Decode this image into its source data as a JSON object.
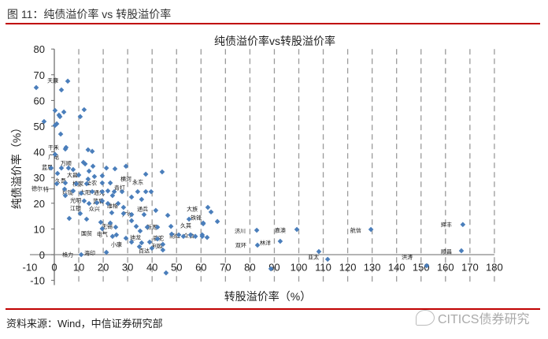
{
  "figure": {
    "title": "图 11：纯债溢价率 vs 转股溢价率",
    "source": "资料来源：Wind，中信证券研究部",
    "watermark": "CITICS债券研究"
  },
  "colors": {
    "marker": "#4a7ebb",
    "rule": "#c00000",
    "grid": "#9a9a9a"
  },
  "chart_data": {
    "type": "scatter",
    "title": "纯债溢价率vs转股溢价率",
    "xlabel": "转股溢价率（%）",
    "ylabel": "纯债溢价率（%）",
    "xlim": [
      -10,
      180
    ],
    "ylim": [
      -10,
      80
    ],
    "xticks": [
      -10,
      0,
      10,
      20,
      30,
      40,
      50,
      60,
      70,
      80,
      90,
      100,
      110,
      120,
      130,
      140,
      150,
      160,
      170,
      180
    ],
    "yticks": [
      80,
      70,
      60,
      50,
      40,
      30,
      20,
      10,
      0,
      -10
    ],
    "grid": "vertical-dashed",
    "points": [
      [
        -7.4,
        65
      ],
      [
        5.5,
        67.5
      ],
      [
        2.9,
        64.1
      ],
      [
        0.3,
        56.1
      ],
      [
        3.9,
        55.5
      ],
      [
        1.9,
        54.3
      ],
      [
        2.3,
        53.7
      ],
      [
        12.2,
        56.4
      ],
      [
        10.6,
        53.7
      ],
      [
        -4.2,
        51.8
      ],
      [
        1,
        50.9
      ],
      [
        0.3,
        50.3
      ],
      [
        2.6,
        46.9
      ],
      [
        4.8,
        41.7
      ],
      [
        4.5,
        41.1
      ],
      [
        13.8,
        40.8
      ],
      [
        15.5,
        40.2
      ],
      [
        0.3,
        39
      ],
      [
        11.9,
        35.9
      ],
      [
        12.6,
        35.3
      ],
      [
        15.8,
        34.4
      ],
      [
        21.3,
        33.7
      ],
      [
        24.8,
        33.4
      ],
      [
        29.3,
        34.4
      ],
      [
        44.1,
        32.2
      ],
      [
        37.4,
        31.3
      ],
      [
        -1.3,
        33.7
      ],
      [
        2.9,
        33.7
      ],
      [
        5.8,
        33.7
      ],
      [
        1.3,
        31.6
      ],
      [
        7.7,
        33.1
      ],
      [
        10,
        31
      ],
      [
        14.2,
        32.5
      ],
      [
        13.8,
        29.4
      ],
      [
        16.4,
        30.4
      ],
      [
        19.6,
        30.7
      ],
      [
        1,
        27.6
      ],
      [
        4.5,
        27.9
      ],
      [
        9,
        27.6
      ],
      [
        13.2,
        27.6
      ],
      [
        19.6,
        27.9
      ],
      [
        22.9,
        27.9
      ],
      [
        4.2,
        25.5
      ],
      [
        7.7,
        24.8
      ],
      [
        11,
        23.9
      ],
      [
        15.5,
        24.5
      ],
      [
        19.6,
        24.5
      ],
      [
        21.9,
        24.8
      ],
      [
        24.5,
        24.5
      ],
      [
        27.7,
        24.5
      ],
      [
        34.1,
        24.5
      ],
      [
        37.4,
        24.5
      ],
      [
        39.6,
        24.5
      ],
      [
        23.8,
        23
      ],
      [
        31.6,
        22.4
      ],
      [
        35.7,
        21.5
      ],
      [
        4.5,
        23
      ],
      [
        12.2,
        20.9
      ],
      [
        14.2,
        19.9
      ],
      [
        17.4,
        20.2
      ],
      [
        19.6,
        20.9
      ],
      [
        21.9,
        19.9
      ],
      [
        26.1,
        19.9
      ],
      [
        28.3,
        18.4
      ],
      [
        23.5,
        16.3
      ],
      [
        28.3,
        16
      ],
      [
        31.6,
        15.6
      ],
      [
        36.7,
        15.6
      ],
      [
        41.5,
        17.2
      ],
      [
        46.4,
        15.3
      ],
      [
        55.1,
        13.8
      ],
      [
        60.9,
        12.3
      ],
      [
        10.6,
        16
      ],
      [
        6.1,
        14.1
      ],
      [
        13.2,
        13.8
      ],
      [
        19,
        12.6
      ],
      [
        22.9,
        12.3
      ],
      [
        25.1,
        10.7
      ],
      [
        31.6,
        13.2
      ],
      [
        33.5,
        11
      ],
      [
        35.1,
        9.2
      ],
      [
        38,
        10.7
      ],
      [
        42.2,
        10.7
      ],
      [
        47.7,
        11
      ],
      [
        48,
        8
      ],
      [
        50.9,
        7.7
      ],
      [
        52.8,
        7.1
      ],
      [
        55.7,
        7.7
      ],
      [
        57.7,
        7.1
      ],
      [
        60.5,
        7.7
      ],
      [
        19.6,
        10.1
      ],
      [
        23.8,
        7.1
      ],
      [
        25.4,
        7.7
      ],
      [
        29.3,
        6.4
      ],
      [
        31.6,
        4.9
      ],
      [
        35.7,
        4.6
      ],
      [
        39,
        4.9
      ],
      [
        42.2,
        6.1
      ],
      [
        44.4,
        4
      ],
      [
        44.4,
        1.8
      ],
      [
        11,
        0
      ],
      [
        21.3,
        0.9
      ],
      [
        39.9,
        2.5
      ],
      [
        34.8,
        3.1
      ],
      [
        62.8,
        18.4
      ],
      [
        64.1,
        16.6
      ],
      [
        60.9,
        12
      ],
      [
        66.7,
        12.9
      ],
      [
        60.5,
        7.1
      ],
      [
        62.5,
        6.7
      ],
      [
        82.8,
        9.5
      ],
      [
        92.4,
        5.2
      ],
      [
        83.1,
        3.7
      ],
      [
        99.2,
        9.8
      ],
      [
        129.5,
        9.8
      ],
      [
        167.1,
        11.7
      ],
      [
        166.5,
        1.5
      ],
      [
        108.2,
        1.2
      ],
      [
        111.8,
        -1.8
      ],
      [
        45.7,
        -7.1
      ],
      [
        88.6,
        -5.5
      ],
      [
        152.3,
        -4.3
      ]
    ],
    "annotations": [
      {
        "text": "天康",
        "x": -0.6,
        "y": 67.8
      },
      {
        "text": "干禾",
        "x": -2.3,
        "y": 41.7
      },
      {
        "text": "广电",
        "x": -0.3,
        "y": 38
      },
      {
        "text": "万顺",
        "x": 4.8,
        "y": 35.6
      },
      {
        "text": "蓝思",
        "x": -2.9,
        "y": 33.4
      },
      {
        "text": "大昌",
        "x": 7.4,
        "y": 31
      },
      {
        "text": "久吾",
        "x": 3.5,
        "y": 28.8
      },
      {
        "text": "横家",
        "x": 9.7,
        "y": 28.2
      },
      {
        "text": "德尔",
        "x": -7.1,
        "y": 28.2
      },
      {
        "text": "特一",
        "x": -7.1,
        "y": 25.5
      },
      {
        "text": "全农",
        "x": 14.2,
        "y": 27.9
      },
      {
        "text": "太阳",
        "x": 12.6,
        "y": 26.1
      },
      {
        "text": "珍珑",
        "x": 5.5,
        "y": 24.2
      },
      {
        "text": "光明",
        "x": 8.7,
        "y": 23
      },
      {
        "text": "通光",
        "x": 16.4,
        "y": 24.2
      },
      {
        "text": "横河",
        "x": 29.3,
        "y": 29.4
      },
      {
        "text": "青打",
        "x": 26.7,
        "y": 27.9
      },
      {
        "text": "永东",
        "x": 33.2,
        "y": 28.2
      },
      {
        "text": "蓝盾",
        "x": 18,
        "y": 21.5
      },
      {
        "text": "众兴",
        "x": 16.4,
        "y": 19.6
      },
      {
        "text": "维格",
        "x": 23.8,
        "y": 19
      },
      {
        "text": "通兵",
        "x": 36.1,
        "y": 17.8
      },
      {
        "text": "江银",
        "x": 8.7,
        "y": 19.9
      },
      {
        "text": "广尔",
        "x": 30,
        "y": 15.6
      },
      {
        "text": "无锡",
        "x": 21.6,
        "y": 11
      },
      {
        "text": "国贸",
        "x": 13.2,
        "y": 8.3
      },
      {
        "text": "电气",
        "x": 19.6,
        "y": 8.6
      },
      {
        "text": "小康",
        "x": 25.4,
        "y": 4
      },
      {
        "text": "格力",
        "x": 5.5,
        "y": 0
      },
      {
        "text": "海印",
        "x": 14.5,
        "y": 0.6
      },
      {
        "text": "迪龙",
        "x": 33.2,
        "y": 6.7
      },
      {
        "text": "百达",
        "x": 36.7,
        "y": 1.5
      },
      {
        "text": "利欧",
        "x": 42.2,
        "y": 3.4
      },
      {
        "text": "骆驼",
        "x": 42.5,
        "y": 5.2
      },
      {
        "text": "雨虹",
        "x": 49.3,
        "y": 7.4
      },
      {
        "text": "众信",
        "x": 55,
        "y": 7.4
      },
      {
        "text": "新周",
        "x": 39.9,
        "y": 10.7
      },
      {
        "text": "久其",
        "x": 53.8,
        "y": 11.3
      },
      {
        "text": "大族",
        "x": 56.4,
        "y": 17.8
      },
      {
        "text": "铁锋",
        "x": 58,
        "y": 16.3
      },
      {
        "text": "济川",
        "x": 76,
        "y": 9.2
      },
      {
        "text": "嘉澳",
        "x": 92.4,
        "y": 9.5
      },
      {
        "text": "航信",
        "x": 123.3,
        "y": 9.5
      },
      {
        "text": "双环",
        "x": 76.3,
        "y": 3.7
      },
      {
        "text": "林洋",
        "x": 86.3,
        "y": 4.6
      },
      {
        "text": "亚太",
        "x": 106,
        "y": -2.1
      },
      {
        "text": "辉丰",
        "x": 160.4,
        "y": 11.7
      },
      {
        "text": "顺昌",
        "x": 160.4,
        "y": 1.2
      },
      {
        "text": "洪涛",
        "x": 144.3,
        "y": -4.6
      }
    ]
  }
}
